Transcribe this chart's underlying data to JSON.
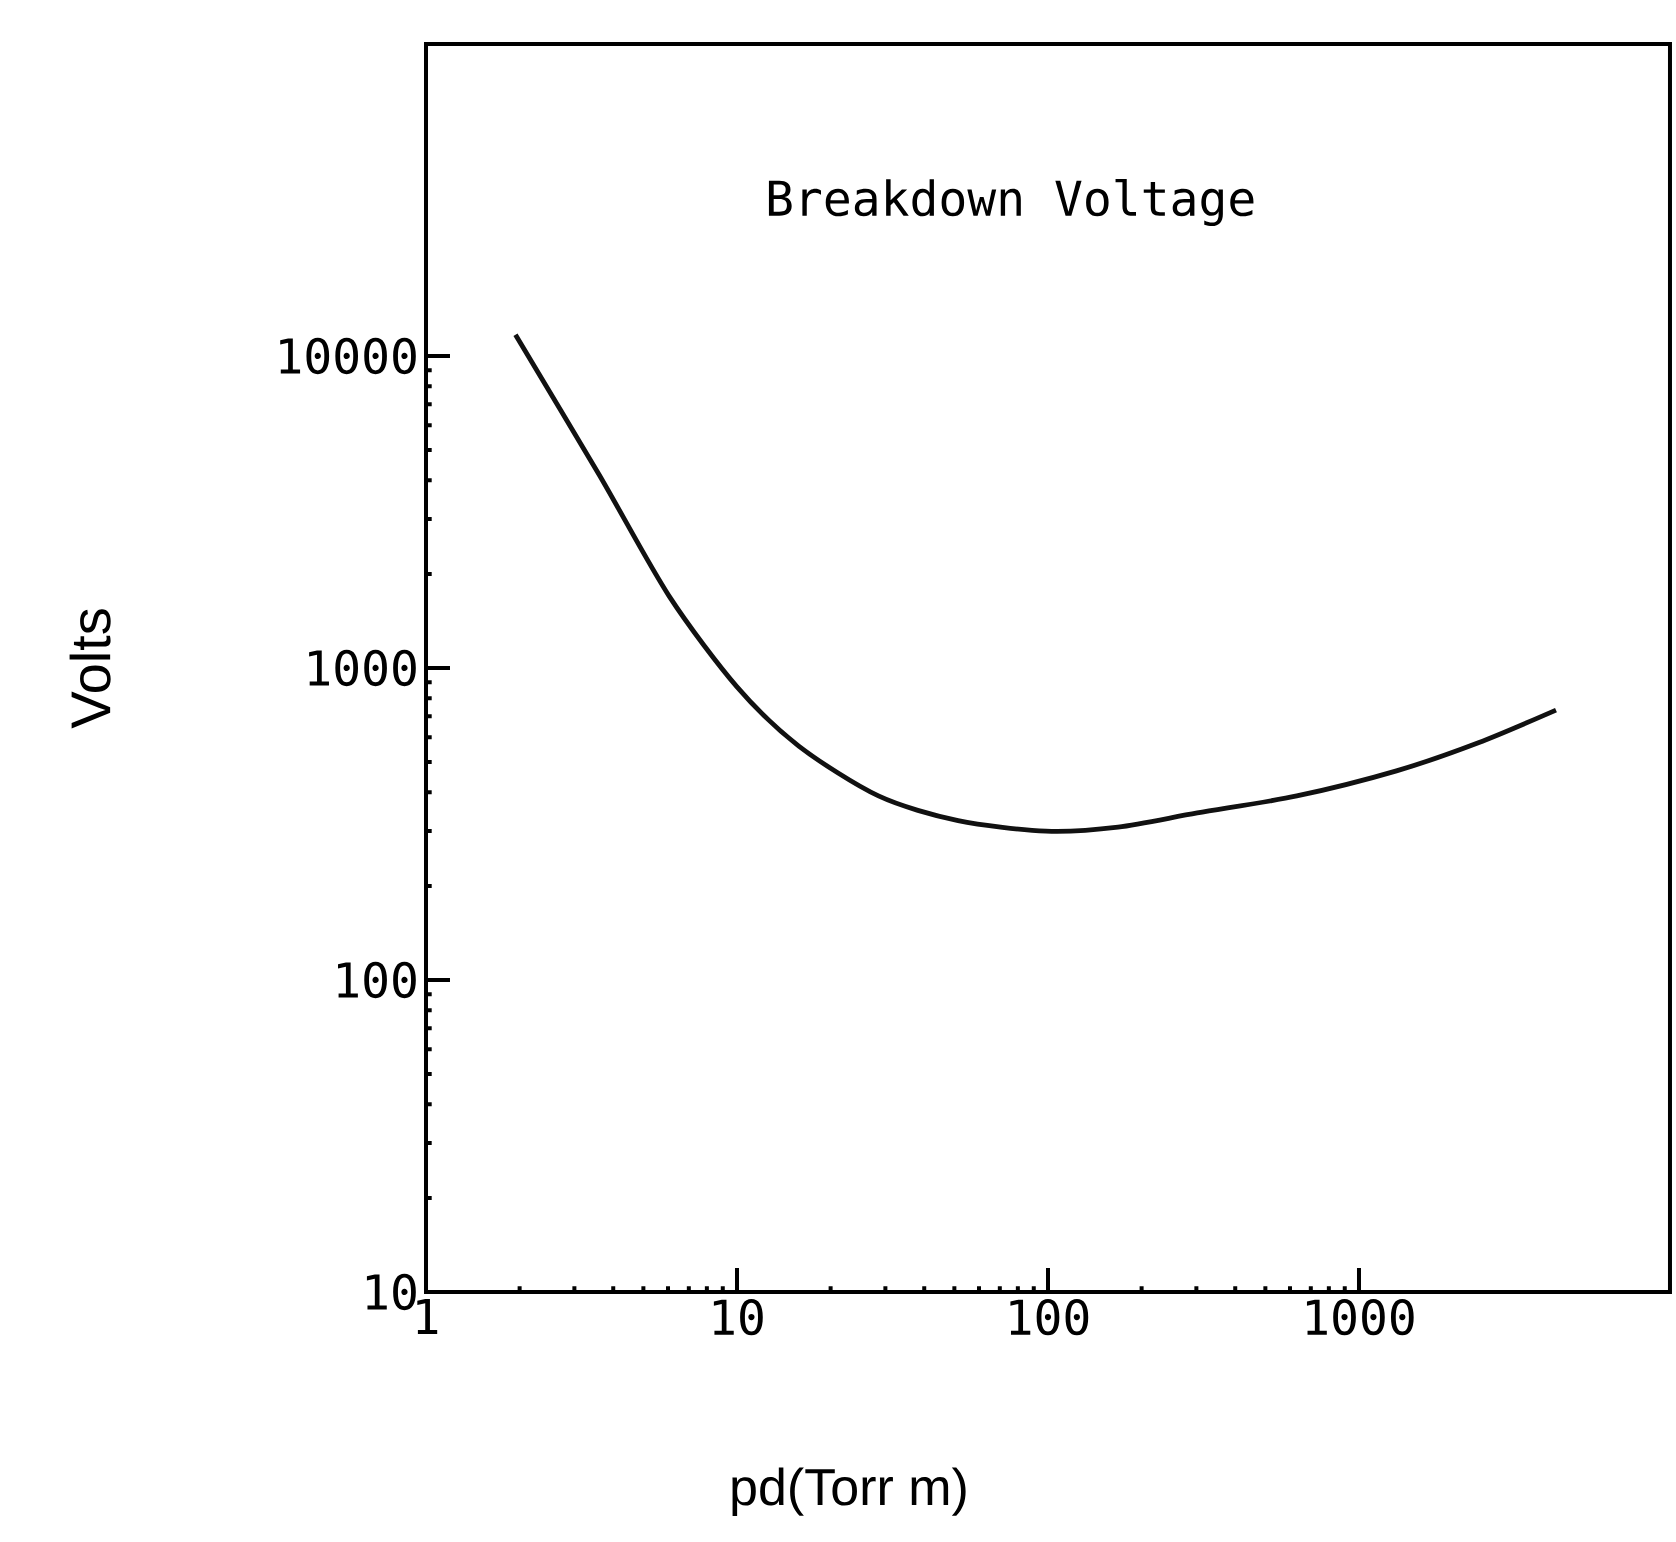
{
  "chart_data": {
    "type": "line",
    "title": "Breakdown Voltage",
    "xlabel": "pd(Torr m)",
    "ylabel": "Volts",
    "log": "xy",
    "xlim": [
      1,
      10000
    ],
    "ylim": [
      10,
      100000
    ],
    "xticks": [
      1,
      10,
      100,
      1000
    ],
    "yticks": [
      10,
      100,
      1000,
      10000
    ],
    "x": [
      1.94,
      3.6,
      6.05,
      10,
      15.8,
      28.5,
      51.4,
      98.5,
      168,
      302,
      631,
      1320,
      2420,
      4300
    ],
    "series": [
      {
        "color": "#111111",
        "values": [
          11700,
          4170,
          1700,
          870,
          562,
          389,
          324,
          300,
          309,
          343,
          389,
          468,
          576,
          733
        ]
      }
    ]
  }
}
